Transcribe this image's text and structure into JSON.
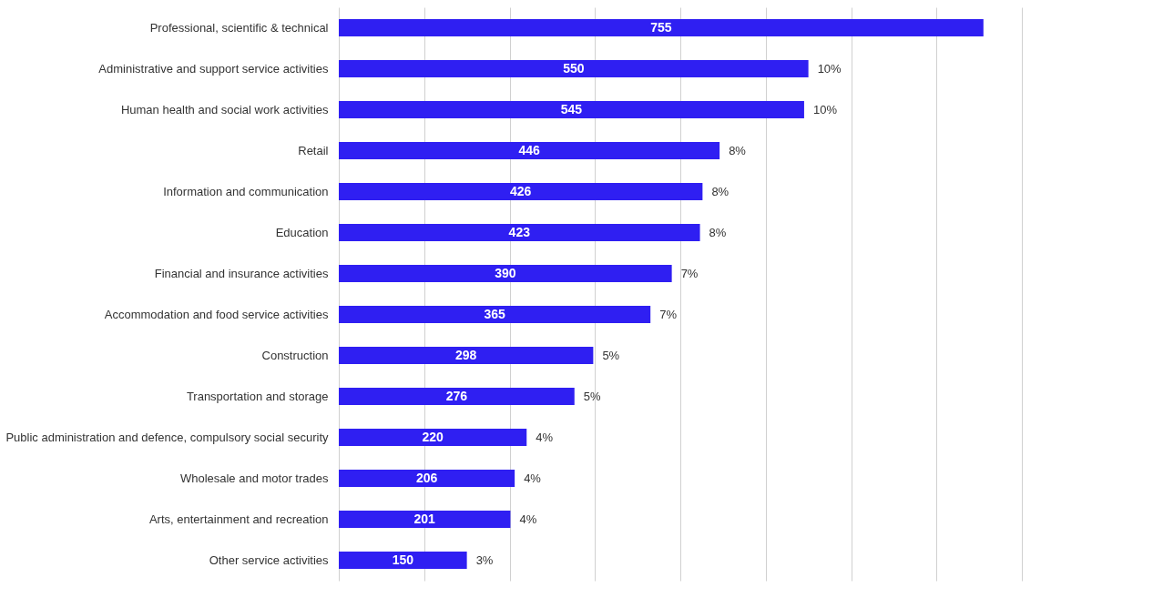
{
  "chart_data": {
    "type": "bar",
    "orientation": "horizontal",
    "categories": [
      "Professional, scientific & technical",
      "Administrative and support service activities",
      "Human health and social work activities",
      "Retail",
      "Information and communication",
      "Education",
      "Financial and insurance activities",
      "Accommodation and food service activities",
      "Construction",
      "Transportation and storage",
      "Public administration and defence, compulsory social security",
      "Wholesale and motor trades",
      "Arts, entertainment and recreation",
      "Other service activities"
    ],
    "values": [
      755,
      550,
      545,
      446,
      426,
      423,
      390,
      365,
      298,
      276,
      220,
      206,
      201,
      150
    ],
    "color": "#2f1ff2",
    "data_labels": true,
    "xlim": [
      0,
      800
    ],
    "xticks": [
      {
        "value": 0,
        "label": null
      },
      {
        "value": 100,
        "label": null
      },
      {
        "value": 200,
        "label": null
      },
      {
        "value": 300,
        "label": null
      },
      {
        "value": 400,
        "label": null
      },
      {
        "value": 500,
        "label": null
      },
      {
        "value": 600,
        "label": null
      },
      {
        "value": 700,
        "label": null
      },
      {
        "value": 800,
        "label": null
      }
    ],
    "grid": "x",
    "tick_labels": "y",
    "annotations": [
      {
        "text": "10%",
        "x": 550,
        "y": "Administrative and support service activities"
      },
      {
        "text": "10%",
        "x": 545,
        "y": "Human health and social work activities"
      },
      {
        "text": "8%",
        "x": 446,
        "y": "Retail"
      },
      {
        "text": "8%",
        "x": 426,
        "y": "Information and communication"
      },
      {
        "text": "8%",
        "x": 423,
        "y": "Education"
      },
      {
        "text": "7%",
        "x": 390,
        "y": "Financial and insurance activities"
      },
      {
        "text": "7%",
        "x": 365,
        "y": "Accommodation and food service activities"
      },
      {
        "text": "5%",
        "x": 298,
        "y": "Construction"
      },
      {
        "text": "5%",
        "x": 276,
        "y": "Transportation and storage"
      },
      {
        "text": "4%",
        "x": 220,
        "y": "Public administration and defence, compulsory social security"
      },
      {
        "text": "4%",
        "x": 206,
        "y": "Wholesale and motor trades"
      },
      {
        "text": "4%",
        "x": 201,
        "y": "Arts, entertainment and recreation"
      },
      {
        "text": "3%",
        "x": 150,
        "y": "Other service activities"
      }
    ]
  }
}
